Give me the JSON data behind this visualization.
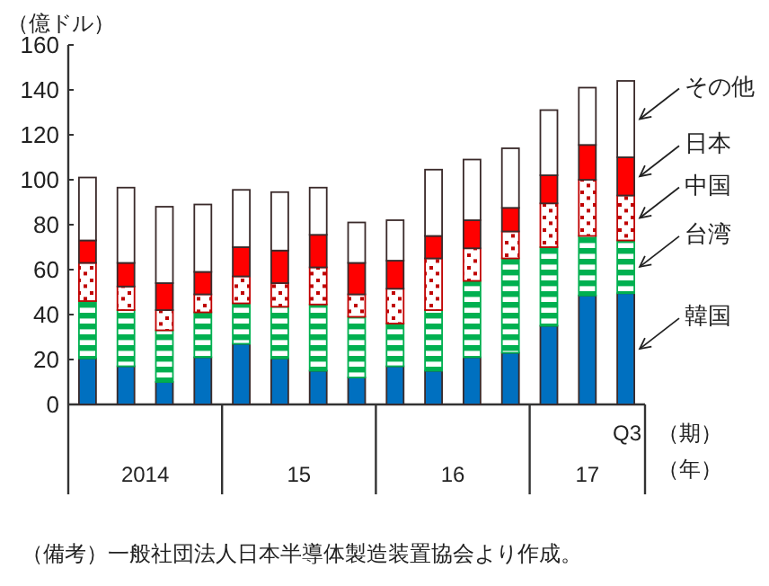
{
  "chart_data": {
    "type": "bar",
    "stacked": true,
    "ylabel": "（億ドル）",
    "xlabel": "（期）",
    "categories": [
      null,
      null,
      null,
      null,
      null,
      null,
      null,
      null,
      null,
      null,
      null,
      null,
      null,
      null,
      "Q3"
    ],
    "ylim": [
      0,
      160
    ],
    "yticks": [
      0,
      20,
      40,
      60,
      80,
      100,
      120,
      140,
      160
    ],
    "series": [
      {
        "name": "韓国",
        "color": "#0070c0",
        "values": [
          20.5,
          17,
          10,
          21,
          27,
          20.5,
          15,
          12,
          17,
          15,
          21,
          23,
          35,
          48.5,
          49.5
        ]
      },
      {
        "name": "台湾",
        "color": "#00b050",
        "values": [
          25.5,
          25,
          23,
          20,
          18,
          23,
          29.5,
          27,
          19,
          27,
          34,
          42,
          35,
          26.5,
          23.5
        ]
      },
      {
        "name": "中国",
        "color": "#c00000",
        "values": [
          17,
          10.5,
          9,
          8,
          12,
          10.5,
          16.5,
          10,
          15.5,
          23,
          14.5,
          12,
          19.5,
          25,
          20
        ]
      },
      {
        "name": "日本",
        "color": "#ff0000",
        "values": [
          10,
          10.5,
          12,
          10,
          13,
          14.5,
          14.5,
          14,
          12.5,
          10,
          12.5,
          10.5,
          12.5,
          15.5,
          17
        ]
      },
      {
        "name": "その他",
        "color": "#ffffff",
        "values": [
          28,
          33.5,
          34,
          30,
          25.5,
          26,
          21,
          18,
          18,
          29.5,
          27,
          26.5,
          29,
          25.5,
          34
        ]
      }
    ],
    "annotations": [
      "2014",
      "15",
      "16",
      "17",
      "（年）",
      "（備考）一般社団法人日本半導体製造装置協会より作成。"
    ]
  }
}
